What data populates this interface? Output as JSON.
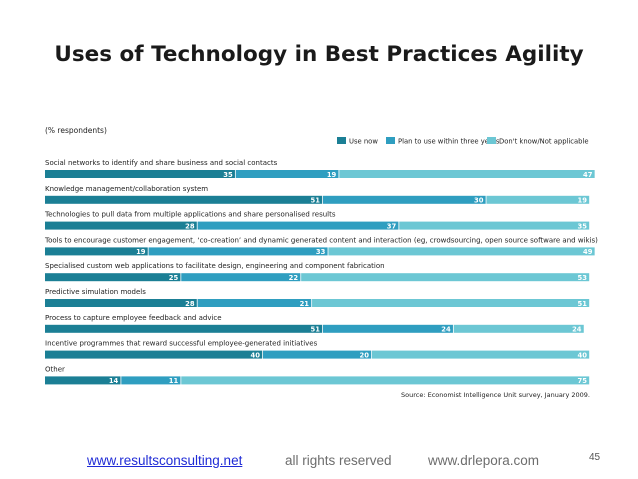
{
  "slide": {
    "title": "Uses of Technology in Best Practices Agility",
    "page_number": "45"
  },
  "footer": {
    "left_link": "www.resultsconsulting.net",
    "center": "all rights reserved",
    "right": "www.drlepora.com"
  },
  "colors": {
    "use_now": "#1b7f95",
    "plan": "#2f9ec0",
    "dont_know": "#6cc7d4",
    "text": "#222222"
  },
  "chart_data": {
    "type": "bar",
    "orientation": "horizontal",
    "stacked": true,
    "unit_label": "(% respondents)",
    "source": "Source: Economist Intelligence Unit survey, January 2009.",
    "legend_position": "top-right",
    "categories": [
      "Social networks to identify and share business and social contacts",
      "Knowledge management/collaboration system",
      "Technologies to pull data from multiple applications and share personalised results",
      "Tools to encourage customer engagement, ‘co-creation’ and dynamic generated content and interaction (eg, crowdsourcing, open source software and wikis)",
      "Specialised custom web applications to facilitate design, engineering and component fabrication",
      "Predictive simulation models",
      "Process to capture employee feedback and advice",
      "Incentive programmes that reward successful employee-generated initiatives",
      "Other"
    ],
    "series": [
      {
        "name": "Use now",
        "values": [
          35,
          51,
          28,
          19,
          25,
          28,
          51,
          40,
          14
        ]
      },
      {
        "name": "Plan to use within three years",
        "values": [
          19,
          30,
          37,
          33,
          22,
          21,
          24,
          20,
          11
        ]
      },
      {
        "name": "Don't know/Not applicable",
        "values": [
          47,
          19,
          35,
          49,
          53,
          51,
          24,
          40,
          75
        ]
      }
    ]
  }
}
